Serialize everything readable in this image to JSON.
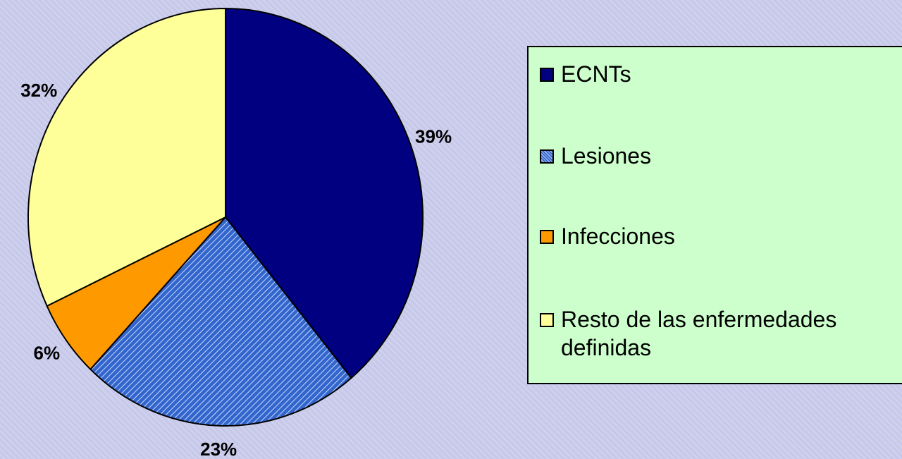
{
  "chart_data": {
    "type": "pie",
    "categories": [
      "ECNTs",
      "Lesiones",
      "Infecciones",
      "Resto de las enfermedades definidas"
    ],
    "values": [
      39,
      23,
      6,
      32
    ],
    "value_labels": [
      "39%",
      "23%",
      "6%",
      "32%"
    ],
    "colors": [
      "#000080",
      "#3366cc",
      "#ff9900",
      "#ffff99"
    ],
    "patterns": [
      "solid",
      "hatch",
      "solid",
      "solid"
    ],
    "legend": "right"
  }
}
